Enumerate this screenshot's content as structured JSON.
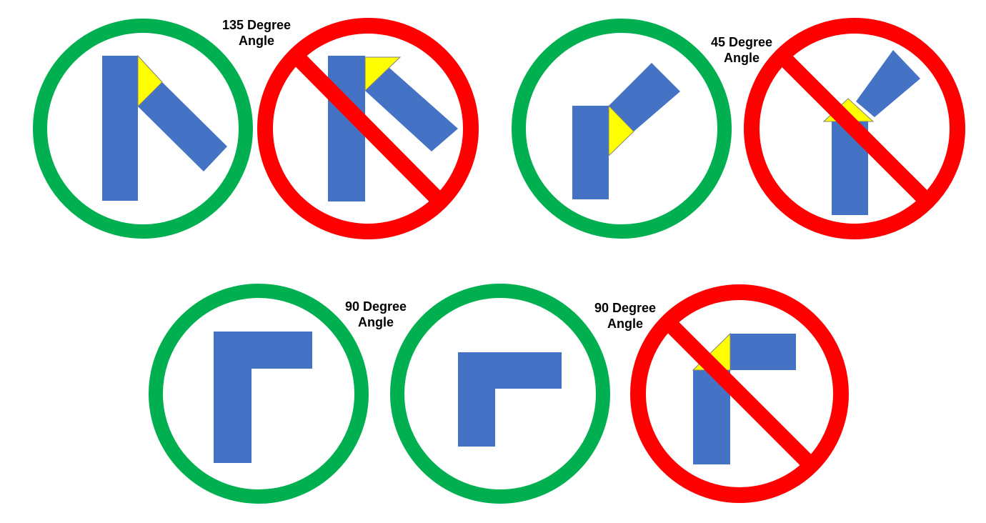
{
  "colors": {
    "allowed_ring": "#00B050",
    "forbidden_ring": "#FF0000",
    "block": "#4472C4",
    "angle_fill": "#FFFF00"
  },
  "labels": [
    {
      "line1": "135 Degree",
      "line2": "Angle"
    },
    {
      "line1": "45 Degree",
      "line2": "Angle"
    },
    {
      "line1": "90 Degree",
      "line2": "Angle"
    },
    {
      "line1": "90 Degree",
      "line2": "Angle"
    }
  ],
  "signs": [
    {
      "id": "sign-135-allowed",
      "kind": "allowed",
      "angle_deg": 135
    },
    {
      "id": "sign-135-forbidden",
      "kind": "forbidden",
      "angle_deg": 135
    },
    {
      "id": "sign-45-allowed",
      "kind": "allowed",
      "angle_deg": 45
    },
    {
      "id": "sign-45-forbidden",
      "kind": "forbidden",
      "angle_deg": 45
    },
    {
      "id": "sign-90-allowed-a",
      "kind": "allowed",
      "angle_deg": 90
    },
    {
      "id": "sign-90-allowed-b",
      "kind": "allowed",
      "angle_deg": 90
    },
    {
      "id": "sign-90-forbidden",
      "kind": "forbidden",
      "angle_deg": 90
    }
  ]
}
